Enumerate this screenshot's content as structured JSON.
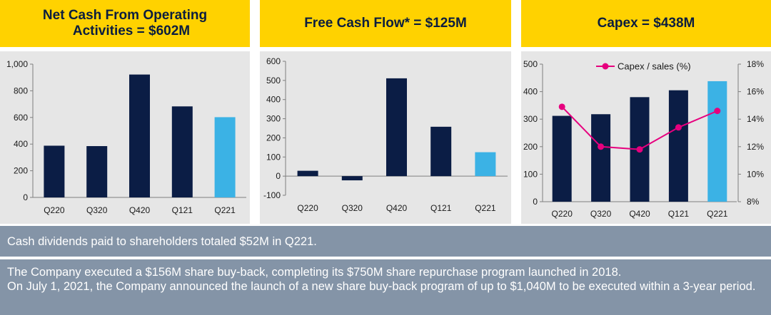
{
  "panels": [
    {
      "title_line1": "Net Cash From Operating",
      "title_line2": "Activities = $602M",
      "chart_data": {
        "type": "bar",
        "categories": [
          "Q220",
          "Q320",
          "Q420",
          "Q121",
          "Q221"
        ],
        "values": [
          388,
          385,
          922,
          683,
          602
        ],
        "highlight_index": 4,
        "yticks": [
          "1,000",
          "800",
          "600",
          "400",
          "200",
          "0"
        ],
        "ylim": [
          0,
          1000
        ]
      }
    },
    {
      "title_line1": "Free Cash Flow* = $125M",
      "chart_data": {
        "type": "bar",
        "categories": [
          "Q220",
          "Q320",
          "Q420",
          "Q121",
          "Q221"
        ],
        "values": [
          28,
          -22,
          511,
          258,
          125
        ],
        "highlight_index": 4,
        "yticks": [
          "600",
          "500",
          "400",
          "300",
          "200",
          "100",
          "0",
          "-100"
        ],
        "ylim": [
          -100,
          600
        ]
      }
    },
    {
      "title_line1": "Capex = $438M",
      "chart_data": {
        "type": "bar",
        "categories": [
          "Q220",
          "Q320",
          "Q420",
          "Q121",
          "Q221"
        ],
        "values": [
          312,
          318,
          380,
          405,
          438
        ],
        "highlight_index": 4,
        "yticks": [
          "500",
          "400",
          "300",
          "200",
          "100",
          "0"
        ],
        "ylim": [
          0,
          500
        ],
        "line_series": {
          "name": "Capex / sales (%)",
          "values": [
            14.9,
            12.0,
            11.8,
            13.4,
            14.6
          ]
        },
        "y2ticks": [
          "18%",
          "16%",
          "14%",
          "12%",
          "10%",
          "8%"
        ],
        "y2lim": [
          8,
          18
        ]
      }
    }
  ],
  "banners": {
    "dividends": "Cash dividends paid to shareholders totaled $52M in Q221.",
    "buyback_line1": "The Company executed a $156M share buy-back, completing its $750M share repurchase program launched in 2018.",
    "buyback_line2": "On July 1, 2021, the Company announced the launch of a new share buy-back program of up to $1,040M to be executed within a 3-year period."
  },
  "colors": {
    "title_bg": "#ffd200",
    "title_text": "#0b1d3f",
    "chart_bg": "#e6e6e6",
    "bar_dark": "#0b1d45",
    "bar_highlight": "#3bb2e5",
    "line": "#e6007e",
    "banner_bg": "#8494a7",
    "banner_text": "#ffffff"
  }
}
